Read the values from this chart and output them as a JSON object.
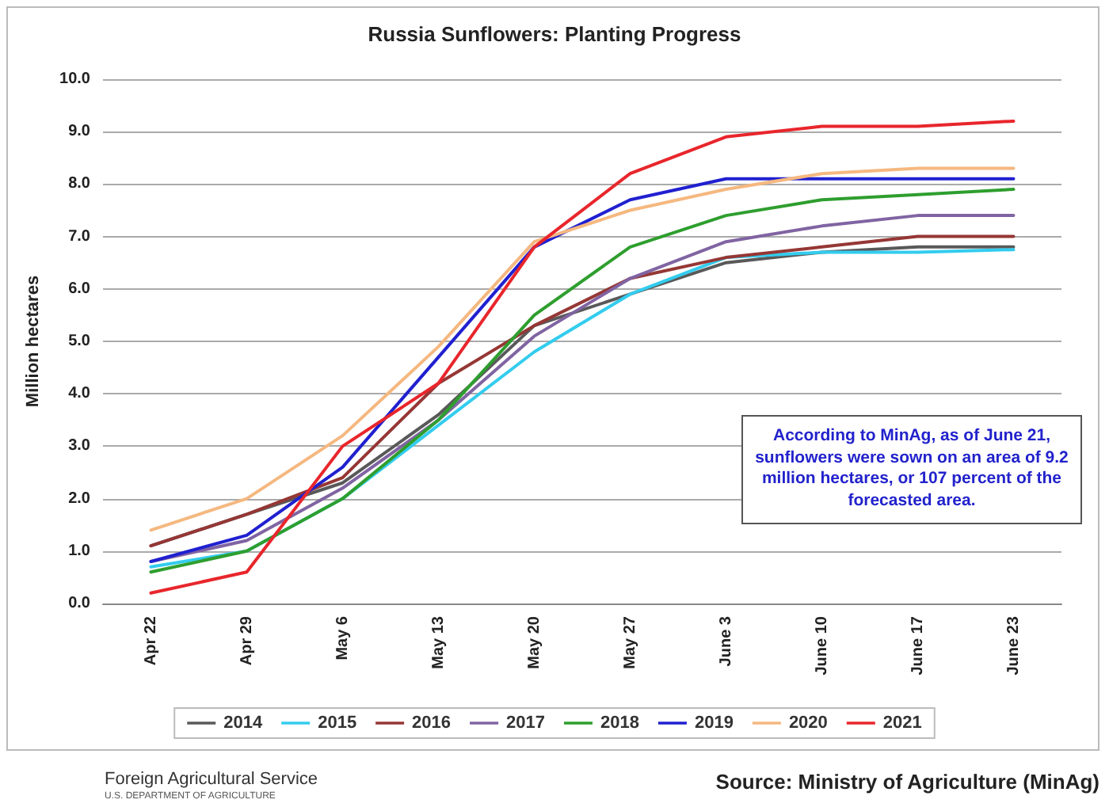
{
  "chart_data": {
    "type": "line",
    "title": "Russia Sunflowers: Planting Progress",
    "ylabel": "Million hectares",
    "categories": [
      "Apr 22",
      "Apr 29",
      "May 6",
      "May 13",
      "May 20",
      "May 27",
      "June 3",
      "June 10",
      "June 17",
      "June 23"
    ],
    "series": [
      {
        "name": "2014",
        "color": "#595959",
        "values": [
          1.1,
          1.7,
          2.3,
          3.6,
          5.3,
          5.9,
          6.5,
          6.7,
          6.8,
          6.8
        ]
      },
      {
        "name": "2015",
        "color": "#33ccee",
        "values": [
          0.7,
          1.0,
          2.0,
          3.4,
          4.8,
          5.9,
          6.6,
          6.7,
          6.7,
          6.75
        ]
      },
      {
        "name": "2016",
        "color": "#953735",
        "values": [
          1.1,
          1.7,
          2.4,
          4.2,
          5.3,
          6.2,
          6.6,
          6.8,
          7.0,
          7.0
        ]
      },
      {
        "name": "2017",
        "color": "#8064a2",
        "values": [
          0.8,
          1.2,
          2.2,
          3.5,
          5.1,
          6.2,
          6.9,
          7.2,
          7.4,
          7.4
        ]
      },
      {
        "name": "2018",
        "color": "#2e9e2e",
        "values": [
          0.6,
          1.0,
          2.0,
          3.5,
          5.5,
          6.8,
          7.4,
          7.7,
          7.8,
          7.9
        ]
      },
      {
        "name": "2019",
        "color": "#2020d0",
        "values": [
          0.8,
          1.3,
          2.6,
          4.7,
          6.8,
          7.7,
          8.1,
          8.1,
          8.1,
          8.1
        ]
      },
      {
        "name": "2020",
        "color": "#f5b880",
        "values": [
          1.4,
          2.0,
          3.2,
          4.9,
          6.9,
          7.5,
          7.9,
          8.2,
          8.3,
          8.3
        ]
      },
      {
        "name": "2021",
        "color": "#e8262c",
        "values": [
          0.2,
          0.6,
          3.0,
          4.2,
          6.8,
          8.2,
          8.9,
          9.1,
          9.1,
          9.2
        ]
      }
    ],
    "ylim": [
      0,
      10
    ],
    "yticks": [
      {
        "value": 0,
        "label": "0.0"
      },
      {
        "value": 1,
        "label": "1.0"
      },
      {
        "value": 2,
        "label": "2.0"
      },
      {
        "value": 3,
        "label": "3.0"
      },
      {
        "value": 4,
        "label": "4.0"
      },
      {
        "value": 5,
        "label": "5.0"
      },
      {
        "value": 6,
        "label": "6.0"
      },
      {
        "value": 7,
        "label": "7.0"
      },
      {
        "value": 8,
        "label": "8.0"
      },
      {
        "value": 9,
        "label": "9.0"
      },
      {
        "value": 10,
        "label": "10.0"
      }
    ],
    "grid": "y",
    "legend": "bottom",
    "marker": "none",
    "line_style": "solid",
    "annotations": [
      "According to MinAg, as of June 21, sunflowers were sown on an area of 9.2 million hectares, or 107 percent of the forecasted area.",
      "Source: Ministry of Agriculture (MinAg)",
      "Foreign Agricultural Service",
      "U.S. DEPARTMENT OF AGRICULTURE"
    ]
  }
}
